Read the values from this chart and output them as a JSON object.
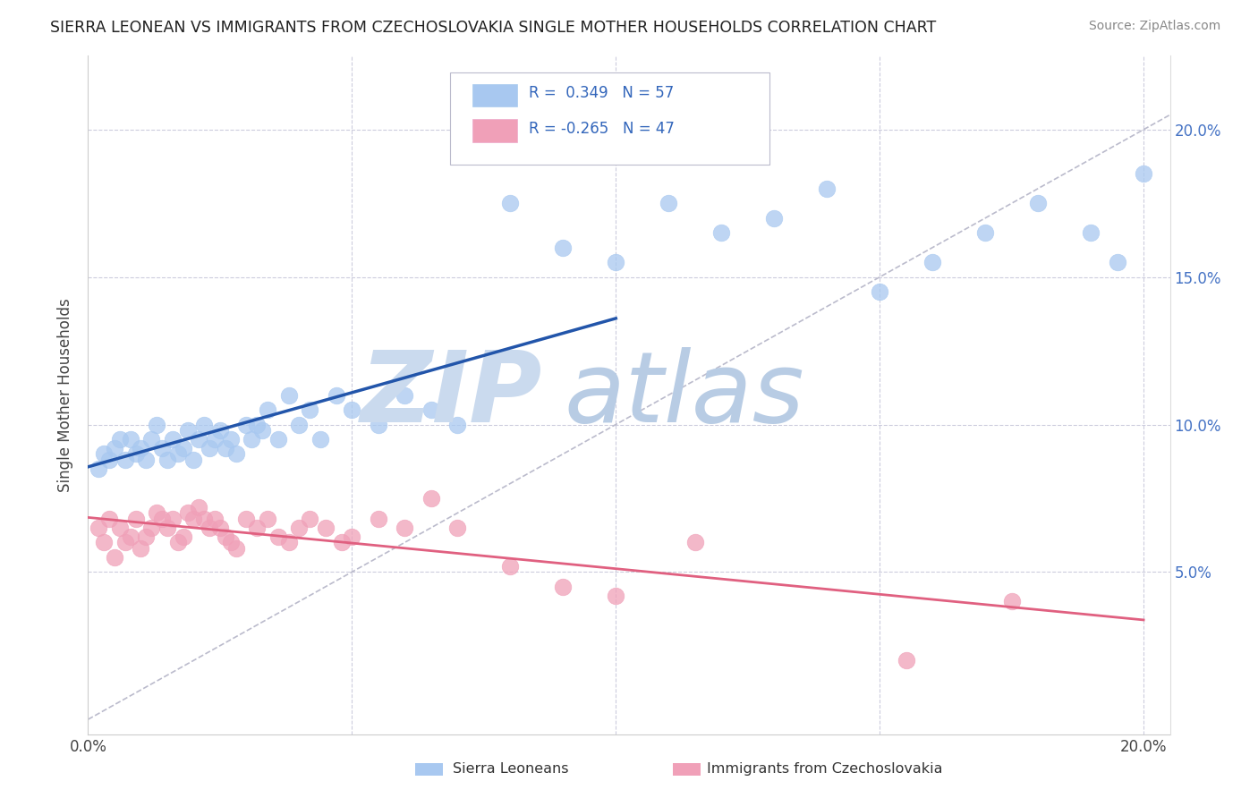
{
  "title": "SIERRA LEONEAN VS IMMIGRANTS FROM CZECHOSLOVAKIA SINGLE MOTHER HOUSEHOLDS CORRELATION CHART",
  "source": "Source: ZipAtlas.com",
  "ylabel": "Single Mother Households",
  "xlim": [
    0.0,
    0.205
  ],
  "ylim": [
    -0.005,
    0.225
  ],
  "yticks": [
    0.0,
    0.05,
    0.1,
    0.15,
    0.2
  ],
  "ytick_labels_right": [
    "5.0%",
    "10.0%",
    "15.0%",
    "20.0%"
  ],
  "xtick_labels": [
    "0.0%",
    "",
    "",
    "",
    "20.0%"
  ],
  "xticks": [
    0.0,
    0.05,
    0.1,
    0.15,
    0.2
  ],
  "legend_labels": [
    "Sierra Leoneans",
    "Immigrants from Czechoslovakia"
  ],
  "blue_R": 0.349,
  "blue_N": 57,
  "pink_R": -0.265,
  "pink_N": 47,
  "blue_color": "#A8C8F0",
  "pink_color": "#F0A0B8",
  "blue_line_color": "#2255AA",
  "pink_line_color": "#E06080",
  "diag_line_color": "#BBBBCC",
  "background_color": "#FFFFFF",
  "grid_color": "#CCCCDD",
  "zip_color": "#C8D8EE",
  "atlas_color": "#B8CCE4",
  "blue_scatter_x": [
    0.002,
    0.003,
    0.004,
    0.005,
    0.006,
    0.007,
    0.008,
    0.009,
    0.01,
    0.011,
    0.012,
    0.013,
    0.014,
    0.015,
    0.016,
    0.017,
    0.018,
    0.019,
    0.02,
    0.021,
    0.022,
    0.023,
    0.024,
    0.025,
    0.026,
    0.027,
    0.028,
    0.03,
    0.031,
    0.032,
    0.033,
    0.034,
    0.036,
    0.038,
    0.04,
    0.042,
    0.044,
    0.047,
    0.05,
    0.055,
    0.06,
    0.065,
    0.07,
    0.08,
    0.09,
    0.1,
    0.11,
    0.12,
    0.13,
    0.14,
    0.15,
    0.16,
    0.17,
    0.18,
    0.19,
    0.195,
    0.2
  ],
  "blue_scatter_y": [
    0.085,
    0.09,
    0.088,
    0.092,
    0.095,
    0.088,
    0.095,
    0.09,
    0.092,
    0.088,
    0.095,
    0.1,
    0.092,
    0.088,
    0.095,
    0.09,
    0.092,
    0.098,
    0.088,
    0.095,
    0.1,
    0.092,
    0.095,
    0.098,
    0.092,
    0.095,
    0.09,
    0.1,
    0.095,
    0.1,
    0.098,
    0.105,
    0.095,
    0.11,
    0.1,
    0.105,
    0.095,
    0.11,
    0.105,
    0.1,
    0.11,
    0.105,
    0.1,
    0.175,
    0.16,
    0.155,
    0.175,
    0.165,
    0.17,
    0.18,
    0.145,
    0.155,
    0.165,
    0.175,
    0.165,
    0.155,
    0.185
  ],
  "pink_scatter_x": [
    0.002,
    0.003,
    0.004,
    0.005,
    0.006,
    0.007,
    0.008,
    0.009,
    0.01,
    0.011,
    0.012,
    0.013,
    0.014,
    0.015,
    0.016,
    0.017,
    0.018,
    0.019,
    0.02,
    0.021,
    0.022,
    0.023,
    0.024,
    0.025,
    0.026,
    0.027,
    0.028,
    0.03,
    0.032,
    0.034,
    0.036,
    0.038,
    0.04,
    0.042,
    0.045,
    0.048,
    0.05,
    0.055,
    0.06,
    0.065,
    0.07,
    0.08,
    0.09,
    0.1,
    0.115,
    0.155,
    0.175
  ],
  "pink_scatter_y": [
    0.065,
    0.06,
    0.068,
    0.055,
    0.065,
    0.06,
    0.062,
    0.068,
    0.058,
    0.062,
    0.065,
    0.07,
    0.068,
    0.065,
    0.068,
    0.06,
    0.062,
    0.07,
    0.068,
    0.072,
    0.068,
    0.065,
    0.068,
    0.065,
    0.062,
    0.06,
    0.058,
    0.068,
    0.065,
    0.068,
    0.062,
    0.06,
    0.065,
    0.068,
    0.065,
    0.06,
    0.062,
    0.068,
    0.065,
    0.075,
    0.065,
    0.052,
    0.045,
    0.042,
    0.06,
    0.02,
    0.04
  ],
  "blue_line_x": [
    0.0,
    0.1
  ],
  "blue_line_y": [
    0.075,
    0.135
  ],
  "pink_line_x": [
    0.0,
    0.2
  ],
  "pink_line_y": [
    0.073,
    0.042
  ]
}
